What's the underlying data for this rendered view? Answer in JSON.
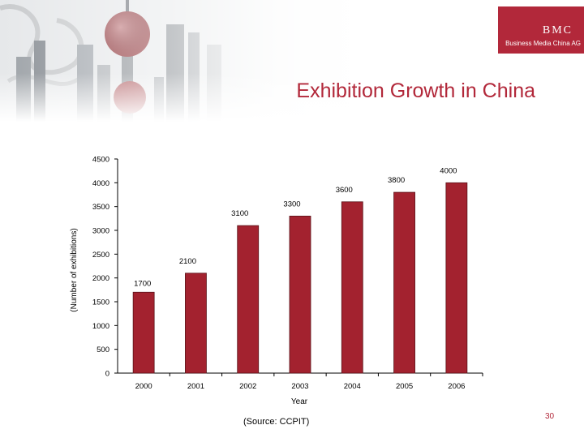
{
  "slide": {
    "title": "Exhibition Growth in China",
    "source": "(Source: CCPIT)",
    "page_number": "30"
  },
  "logo": {
    "mark": "BMC",
    "name": "Business Media China AG",
    "color": "#b2283a"
  },
  "chart_data": {
    "type": "bar",
    "title": "",
    "xlabel": "Year",
    "ylabel": "(Number of exhibitions)",
    "categories": [
      "2000",
      "2001",
      "2002",
      "2003",
      "2004",
      "2005",
      "2006"
    ],
    "values": [
      1700,
      2100,
      3100,
      3300,
      3600,
      3800,
      4000
    ],
    "data_labels": [
      "1700",
      "2100",
      "3100",
      "3300",
      "3600",
      "3800",
      "4000"
    ],
    "ylim": [
      0,
      4500
    ],
    "yticks": [
      0,
      500,
      1000,
      1500,
      2000,
      2500,
      3000,
      3500,
      4000,
      4500
    ],
    "bar_color": "#a3222f",
    "grid": false,
    "legend": "none"
  }
}
